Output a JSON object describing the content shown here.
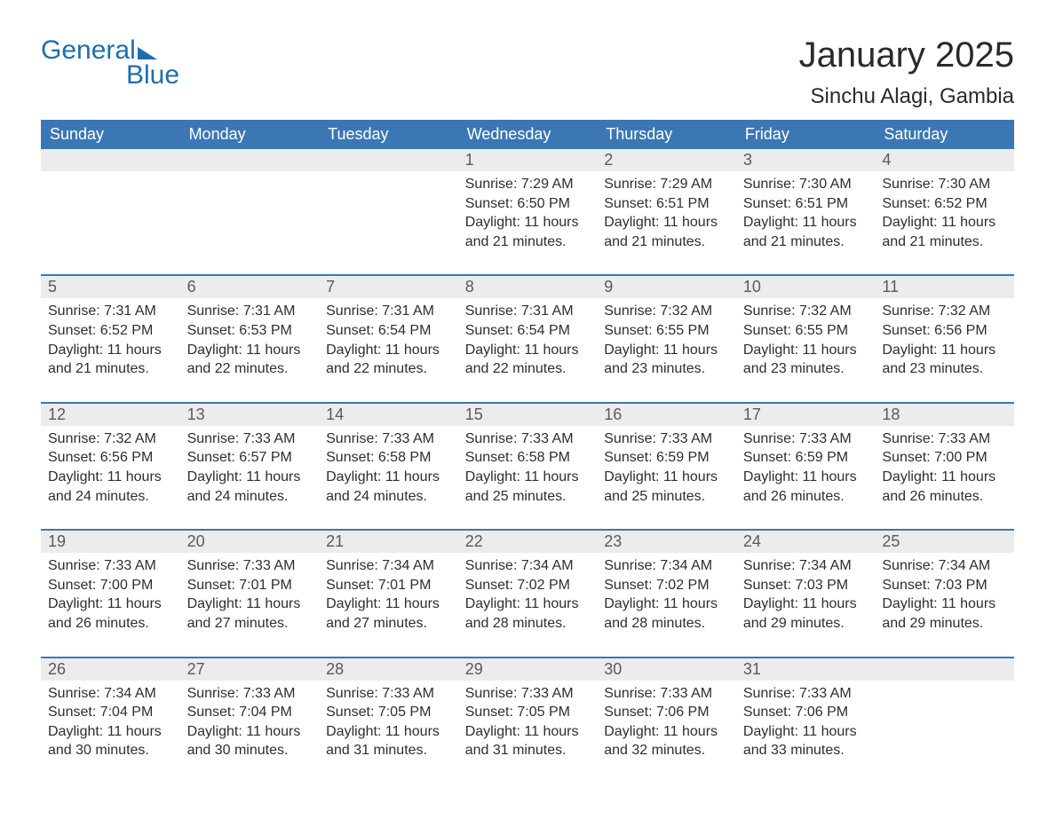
{
  "logo": {
    "word1": "General",
    "word2": "Blue"
  },
  "title": "January 2025",
  "location": "Sinchu Alagi, Gambia",
  "colors": {
    "header_bg": "#3b77b4",
    "header_text": "#ffffff",
    "daynum_bg": "#ececec",
    "daynum_text": "#5a5a5a",
    "row_border": "#3b77b4",
    "logo_color": "#1f6db0",
    "body_text": "#2e2e2e",
    "page_bg": "#ffffff"
  },
  "typography": {
    "title_fontsize": 40,
    "location_fontsize": 24,
    "header_fontsize": 18,
    "daynum_fontsize": 18,
    "body_fontsize": 16,
    "logo_fontsize": 30
  },
  "layout": {
    "columns": 7,
    "weeks": 5
  },
  "day_headers": [
    "Sunday",
    "Monday",
    "Tuesday",
    "Wednesday",
    "Thursday",
    "Friday",
    "Saturday"
  ],
  "weeks": [
    [
      null,
      null,
      null,
      {
        "n": "1",
        "sunrise": "Sunrise: 7:29 AM",
        "sunset": "Sunset: 6:50 PM",
        "daylight": "Daylight: 11 hours and 21 minutes."
      },
      {
        "n": "2",
        "sunrise": "Sunrise: 7:29 AM",
        "sunset": "Sunset: 6:51 PM",
        "daylight": "Daylight: 11 hours and 21 minutes."
      },
      {
        "n": "3",
        "sunrise": "Sunrise: 7:30 AM",
        "sunset": "Sunset: 6:51 PM",
        "daylight": "Daylight: 11 hours and 21 minutes."
      },
      {
        "n": "4",
        "sunrise": "Sunrise: 7:30 AM",
        "sunset": "Sunset: 6:52 PM",
        "daylight": "Daylight: 11 hours and 21 minutes."
      }
    ],
    [
      {
        "n": "5",
        "sunrise": "Sunrise: 7:31 AM",
        "sunset": "Sunset: 6:52 PM",
        "daylight": "Daylight: 11 hours and 21 minutes."
      },
      {
        "n": "6",
        "sunrise": "Sunrise: 7:31 AM",
        "sunset": "Sunset: 6:53 PM",
        "daylight": "Daylight: 11 hours and 22 minutes."
      },
      {
        "n": "7",
        "sunrise": "Sunrise: 7:31 AM",
        "sunset": "Sunset: 6:54 PM",
        "daylight": "Daylight: 11 hours and 22 minutes."
      },
      {
        "n": "8",
        "sunrise": "Sunrise: 7:31 AM",
        "sunset": "Sunset: 6:54 PM",
        "daylight": "Daylight: 11 hours and 22 minutes."
      },
      {
        "n": "9",
        "sunrise": "Sunrise: 7:32 AM",
        "sunset": "Sunset: 6:55 PM",
        "daylight": "Daylight: 11 hours and 23 minutes."
      },
      {
        "n": "10",
        "sunrise": "Sunrise: 7:32 AM",
        "sunset": "Sunset: 6:55 PM",
        "daylight": "Daylight: 11 hours and 23 minutes."
      },
      {
        "n": "11",
        "sunrise": "Sunrise: 7:32 AM",
        "sunset": "Sunset: 6:56 PM",
        "daylight": "Daylight: 11 hours and 23 minutes."
      }
    ],
    [
      {
        "n": "12",
        "sunrise": "Sunrise: 7:32 AM",
        "sunset": "Sunset: 6:56 PM",
        "daylight": "Daylight: 11 hours and 24 minutes."
      },
      {
        "n": "13",
        "sunrise": "Sunrise: 7:33 AM",
        "sunset": "Sunset: 6:57 PM",
        "daylight": "Daylight: 11 hours and 24 minutes."
      },
      {
        "n": "14",
        "sunrise": "Sunrise: 7:33 AM",
        "sunset": "Sunset: 6:58 PM",
        "daylight": "Daylight: 11 hours and 24 minutes."
      },
      {
        "n": "15",
        "sunrise": "Sunrise: 7:33 AM",
        "sunset": "Sunset: 6:58 PM",
        "daylight": "Daylight: 11 hours and 25 minutes."
      },
      {
        "n": "16",
        "sunrise": "Sunrise: 7:33 AM",
        "sunset": "Sunset: 6:59 PM",
        "daylight": "Daylight: 11 hours and 25 minutes."
      },
      {
        "n": "17",
        "sunrise": "Sunrise: 7:33 AM",
        "sunset": "Sunset: 6:59 PM",
        "daylight": "Daylight: 11 hours and 26 minutes."
      },
      {
        "n": "18",
        "sunrise": "Sunrise: 7:33 AM",
        "sunset": "Sunset: 7:00 PM",
        "daylight": "Daylight: 11 hours and 26 minutes."
      }
    ],
    [
      {
        "n": "19",
        "sunrise": "Sunrise: 7:33 AM",
        "sunset": "Sunset: 7:00 PM",
        "daylight": "Daylight: 11 hours and 26 minutes."
      },
      {
        "n": "20",
        "sunrise": "Sunrise: 7:33 AM",
        "sunset": "Sunset: 7:01 PM",
        "daylight": "Daylight: 11 hours and 27 minutes."
      },
      {
        "n": "21",
        "sunrise": "Sunrise: 7:34 AM",
        "sunset": "Sunset: 7:01 PM",
        "daylight": "Daylight: 11 hours and 27 minutes."
      },
      {
        "n": "22",
        "sunrise": "Sunrise: 7:34 AM",
        "sunset": "Sunset: 7:02 PM",
        "daylight": "Daylight: 11 hours and 28 minutes."
      },
      {
        "n": "23",
        "sunrise": "Sunrise: 7:34 AM",
        "sunset": "Sunset: 7:02 PM",
        "daylight": "Daylight: 11 hours and 28 minutes."
      },
      {
        "n": "24",
        "sunrise": "Sunrise: 7:34 AM",
        "sunset": "Sunset: 7:03 PM",
        "daylight": "Daylight: 11 hours and 29 minutes."
      },
      {
        "n": "25",
        "sunrise": "Sunrise: 7:34 AM",
        "sunset": "Sunset: 7:03 PM",
        "daylight": "Daylight: 11 hours and 29 minutes."
      }
    ],
    [
      {
        "n": "26",
        "sunrise": "Sunrise: 7:34 AM",
        "sunset": "Sunset: 7:04 PM",
        "daylight": "Daylight: 11 hours and 30 minutes."
      },
      {
        "n": "27",
        "sunrise": "Sunrise: 7:33 AM",
        "sunset": "Sunset: 7:04 PM",
        "daylight": "Daylight: 11 hours and 30 minutes."
      },
      {
        "n": "28",
        "sunrise": "Sunrise: 7:33 AM",
        "sunset": "Sunset: 7:05 PM",
        "daylight": "Daylight: 11 hours and 31 minutes."
      },
      {
        "n": "29",
        "sunrise": "Sunrise: 7:33 AM",
        "sunset": "Sunset: 7:05 PM",
        "daylight": "Daylight: 11 hours and 31 minutes."
      },
      {
        "n": "30",
        "sunrise": "Sunrise: 7:33 AM",
        "sunset": "Sunset: 7:06 PM",
        "daylight": "Daylight: 11 hours and 32 minutes."
      },
      {
        "n": "31",
        "sunrise": "Sunrise: 7:33 AM",
        "sunset": "Sunset: 7:06 PM",
        "daylight": "Daylight: 11 hours and 33 minutes."
      },
      null
    ]
  ]
}
